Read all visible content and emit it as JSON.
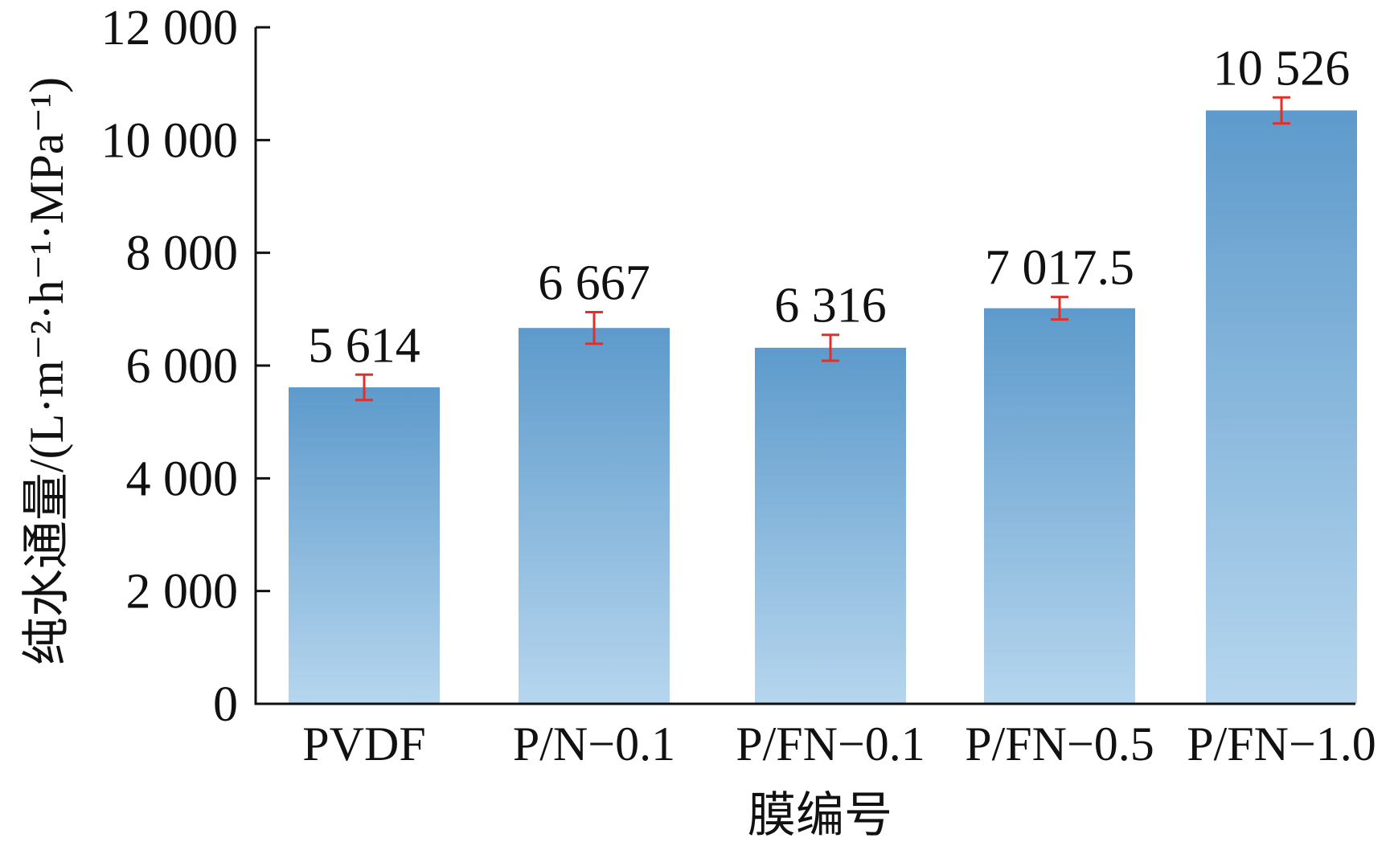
{
  "chart_data": {
    "type": "bar",
    "categories": [
      "PVDF",
      "P/N−0.1",
      "P/FN−0.1",
      "P/FN−0.5",
      "P/FN−1.0"
    ],
    "values": [
      5614,
      6667,
      6316,
      7017.5,
      10526
    ],
    "value_labels": [
      "5 614",
      "6 667",
      "6 316",
      "7 017.5",
      "10 526"
    ],
    "error": [
      225,
      280,
      230,
      200,
      230
    ],
    "xlabel": "膜编号",
    "ylabel": "纯水通量/(L·m⁻²·h⁻¹·MPa⁻¹)",
    "ylim": [
      0,
      12000
    ],
    "yticks": [
      0,
      2000,
      4000,
      6000,
      8000,
      10000,
      12000
    ],
    "ytick_labels": [
      "0",
      "2 000",
      "4 000",
      "6 000",
      "8 000",
      "10 000",
      "12 000"
    ],
    "grid": false,
    "colors": {
      "bar_top": "#5d9acb",
      "bar_bottom": "#b6d6ee",
      "error_bar": "#e0302a",
      "axis": "#111111"
    }
  }
}
